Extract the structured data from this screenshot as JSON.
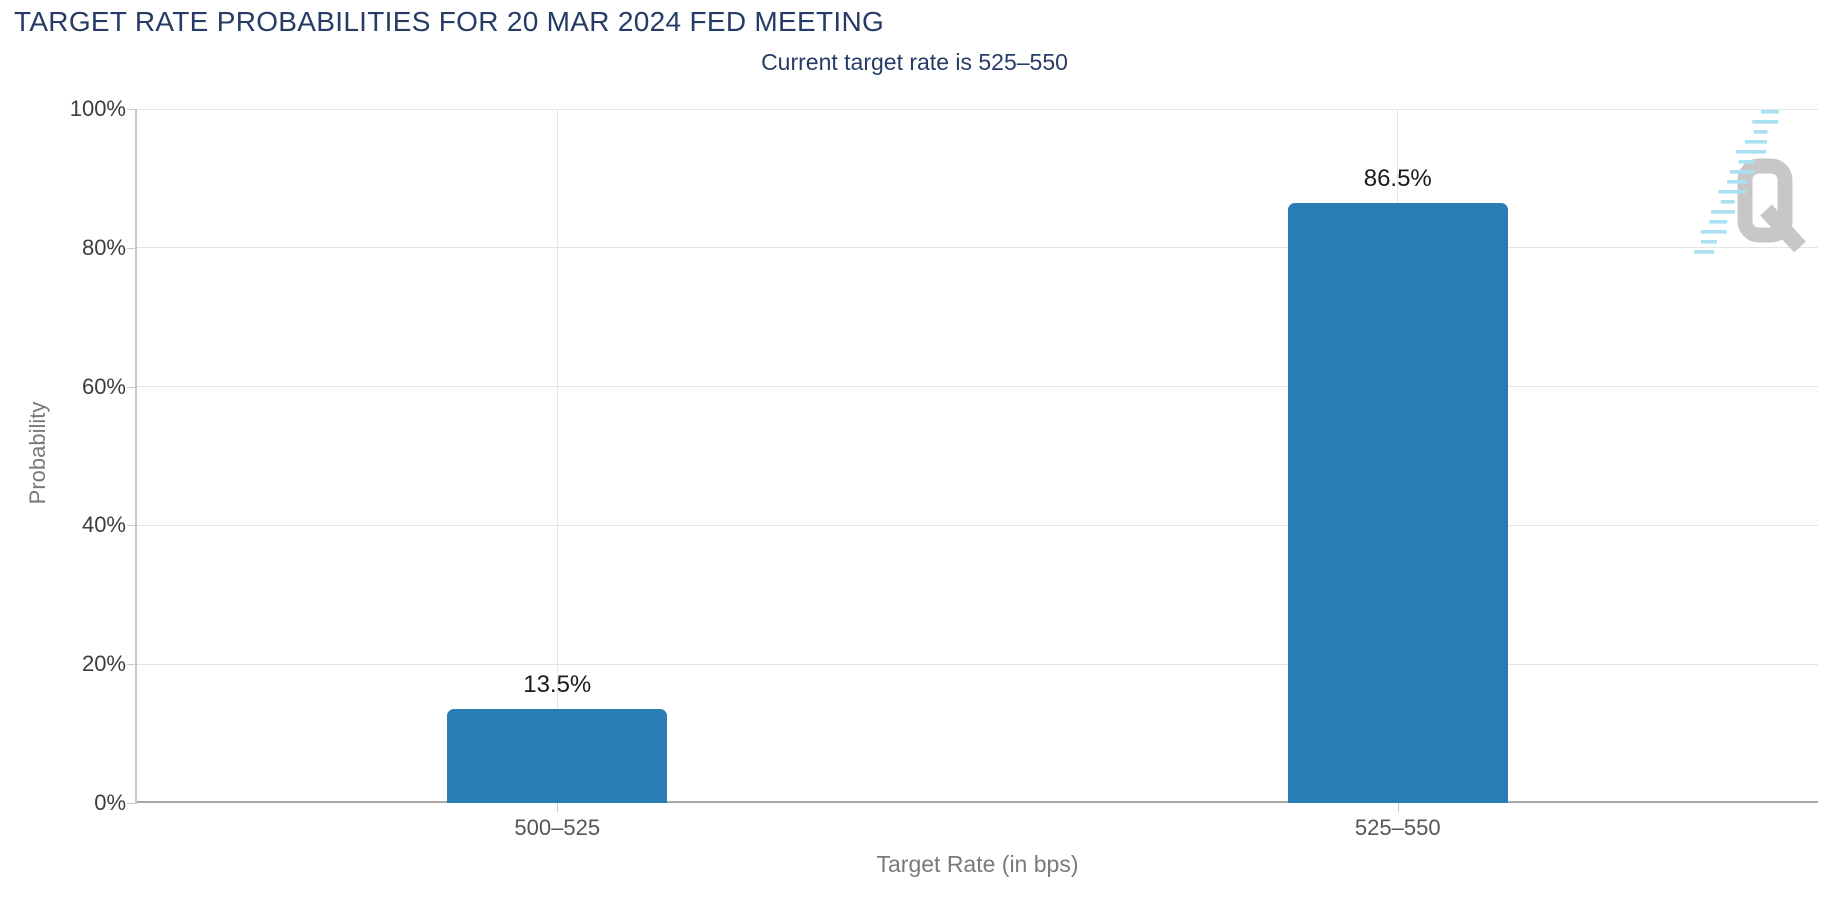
{
  "chart_data": {
    "type": "bar",
    "title": "TARGET RATE PROBABILITIES FOR 20 MAR 2024 FED MEETING",
    "subtitle": "Current target rate is 525–550",
    "categories": [
      "500–525",
      "525–550"
    ],
    "values": [
      13.5,
      86.5
    ],
    "value_labels": [
      "13.5%",
      "86.5%"
    ],
    "xlabel": "Target Rate (in bps)",
    "ylabel": "Probability",
    "ylim": [
      0,
      100
    ],
    "yticks": [
      0,
      20,
      40,
      60,
      80,
      100
    ],
    "ytick_labels": [
      "0%",
      "20%",
      "40%",
      "60%",
      "80%",
      "100%"
    ],
    "grid": true,
    "legend": false,
    "colors": {
      "bar": "#2a7cb5",
      "title": "#263c66",
      "subtitle": "#263c66",
      "axis_text": "#3d3d3d",
      "category_text": "#555555",
      "value_label_text": "#1a1a1a",
      "axis_title_text": "#7a7a7a",
      "gridline": "#e4e4e4",
      "axis_line": "#c9c9c9",
      "baseline": "#a8a8a8"
    }
  },
  "watermark": {
    "letter": "Q",
    "q_color": "#c7c7c7",
    "dash_color": "#a9e0f3"
  }
}
